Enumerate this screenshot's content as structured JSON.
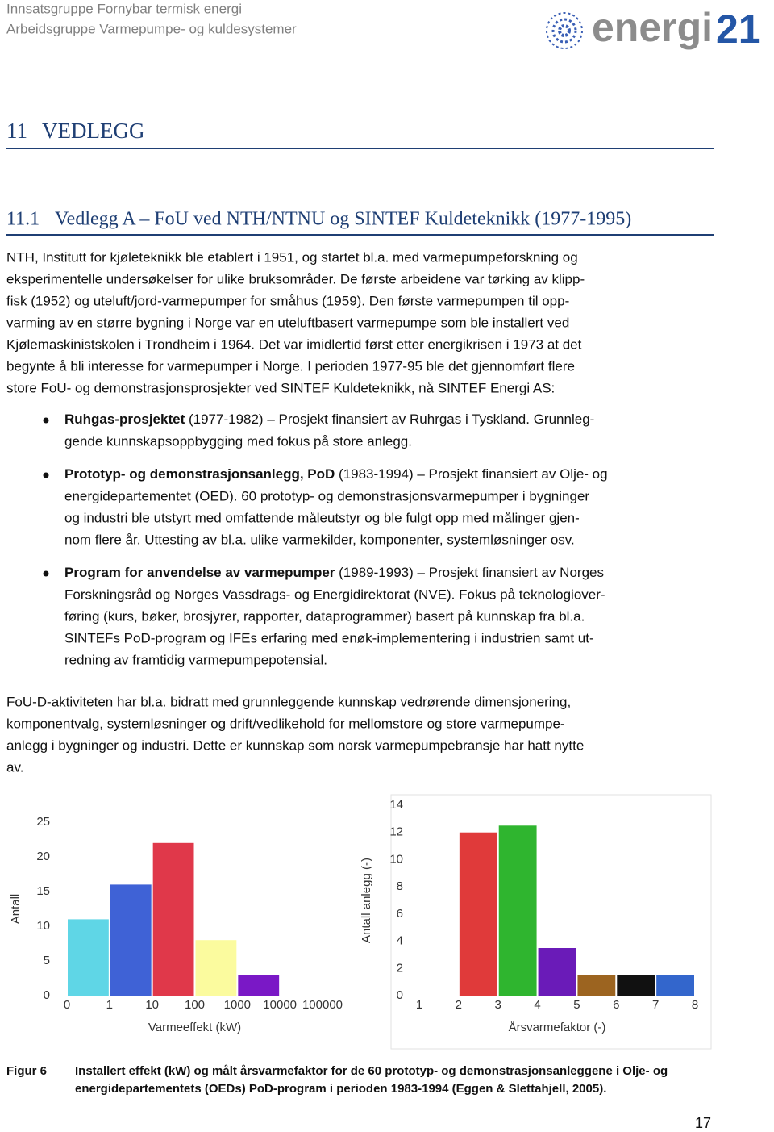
{
  "header": {
    "line1": "Innsatsgruppe Fornybar termisk energi",
    "line2": "Arbeidsgruppe Varmepumpe- og kuldesystemer",
    "logo_text": "energi",
    "logo_number": "21"
  },
  "heading": {
    "number": "11",
    "title": "VEDLEGG"
  },
  "subheading": {
    "number": "11.1",
    "title": "Vedlegg A – FoU ved NTH/NTNU og SINTEF Kuldeteknikk (1977-1995)"
  },
  "paragraphs": [
    [
      "NTH, Institutt for kjøleteknikk ble etablert i 1951, og startet bl.a. med varmepumpeforskning og",
      "eksperimentelle undersøkelser for ulike bruksområder. De første arbeidene var tørking av klipp-",
      "fisk (1952) og uteluft/jord-varmepumper for småhus (1959). Den første varmepumpen til opp-",
      "varming av en større bygning i Norge var en uteluftbasert varmepumpe som ble installert ved",
      "Kjølemaskinistskolen i Trondheim i 1964. Det var imidlertid først etter energikrisen i 1973 at det",
      "begynte å bli interesse for varmepumper i Norge. I perioden 1977-95 ble det gjennomført flere",
      "store FoU- og demonstrasjonsprosjekter ved SINTEF Kuldeteknikk, nå SINTEF Energi AS:"
    ],
    [
      "FoU-D-aktiviteten har bl.a. bidratt med grunnleggende kunnskap vedrørende dimensjonering,",
      "komponentvalg, systemløsninger og drift/vedlikehold for mellomstore og store varmepumpe-",
      "anlegg i bygninger og industri. Dette er kunnskap som norsk varmepumpebransje har hatt nytte",
      "av."
    ]
  ],
  "bullets": [
    {
      "bold": "Ruhgas-prosjektet",
      "first_line": " (1977-1982) – Prosjekt finansiert av Ruhrgas i Tyskland. Grunnleg-",
      "lines": [
        "gende kunnskapsoppbygging med fokus på store anlegg."
      ]
    },
    {
      "bold": "Prototyp- og demonstrasjonsanlegg, PoD",
      "first_line": " (1983-1994) – Prosjekt finansiert av Olje- og",
      "lines": [
        "energidepartementet (OED). 60 prototyp- og demonstrasjonsvarmepumper i bygninger",
        "og industri ble utstyrt med omfattende måleutstyr og ble fulgt opp med målinger gjen-",
        "nom flere år. Uttesting av bl.a. ulike varmekilder, komponenter, systemløsninger osv."
      ]
    },
    {
      "bold": "Program for anvendelse av varmepumper",
      "first_line": " (1989-1993) – Prosjekt finansiert av Norges",
      "lines": [
        "Forskningsråd og Norges Vassdrags- og Energidirektorat (NVE).  Fokus på teknologiover-",
        "føring (kurs, bøker, brosjyrer, rapporter, dataprogrammer) basert på kunnskap fra bl.a.",
        "SINTEFs PoD-program og IFEs erfaring med enøk-implementering i industrien samt ut-",
        "redning av framtidig varmepumpepotensial."
      ]
    }
  ],
  "chart_data": [
    {
      "type": "histogram",
      "ylabel": "Antall",
      "xlabel": "Varmeeffekt (kW)",
      "bins": [
        0,
        1,
        10,
        100,
        1000,
        10000,
        100000
      ],
      "values": [
        11,
        16,
        22,
        8,
        3,
        0
      ],
      "colors": [
        "#5fd6e6",
        "#3f62d6",
        "#e0384a",
        "#fbfb9e",
        "#7a18c6",
        "#ffffff"
      ],
      "ylim": [
        0,
        25
      ],
      "yticks": [
        0,
        5,
        10,
        15,
        20,
        25
      ]
    },
    {
      "type": "histogram",
      "ylabel": "Antall anlegg (-)",
      "xlabel": "Årsvarmefaktor (-)",
      "bins": [
        1,
        2,
        3,
        4,
        5,
        6,
        7,
        8
      ],
      "values": [
        0,
        12,
        12.5,
        3.5,
        1.5,
        1.5,
        1.5
      ],
      "colors": [
        "#ffffff",
        "#e03a3a",
        "#2fb52f",
        "#6a1bb8",
        "#9c6420",
        "#111111",
        "#3366cc"
      ],
      "ylim": [
        0,
        14
      ],
      "yticks": [
        0,
        2,
        4,
        6,
        8,
        10,
        12,
        14
      ]
    }
  ],
  "caption": {
    "label": "Figur 6",
    "lines": [
      "Installert effekt (kW) og målt årsvarmefaktor for de 60 prototyp- og demonstrasjonsanleggene i Olje- og",
      "energidepartementets (OEDs) PoD-program i perioden 1983-1994  (Eggen & Slettahjell, 2005)."
    ]
  },
  "page_number": "17"
}
